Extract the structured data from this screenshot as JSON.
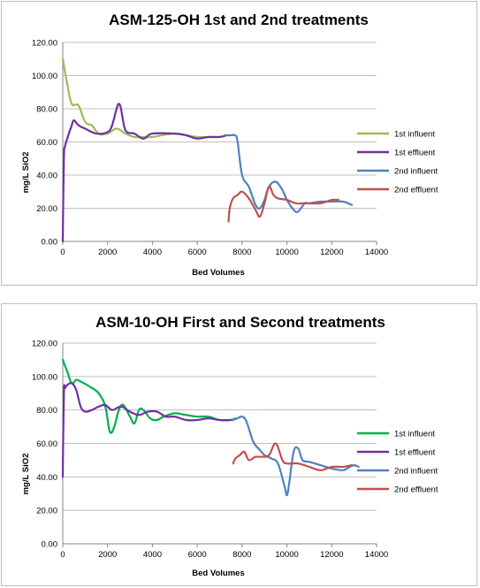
{
  "chart_data": [
    {
      "type": "line",
      "title": "ASM-125-OH  1st and 2nd treatments",
      "xlabel": "Bed Volumes",
      "ylabel": "mg/L SiO2",
      "xlim": [
        0,
        14000
      ],
      "ylim": [
        0,
        120
      ],
      "x_ticks": [
        "0",
        "2000",
        "4000",
        "6000",
        "8000",
        "10000",
        "12000",
        "14000"
      ],
      "y_ticks": [
        "0.00",
        "20.00",
        "40.00",
        "60.00",
        "80.00",
        "100.00",
        "120.00"
      ],
      "grid": "horizontal",
      "legend_position": "right",
      "series": [
        {
          "name": "1st influent",
          "color": "#9bbb59",
          "points": [
            [
              0,
              110
            ],
            [
              200,
              95
            ],
            [
              400,
              83
            ],
            [
              700,
              82
            ],
            [
              1000,
              72
            ],
            [
              1300,
              70
            ],
            [
              1600,
              65
            ],
            [
              2000,
              65
            ],
            [
              2400,
              68
            ],
            [
              2800,
              65
            ],
            [
              3200,
              63
            ],
            [
              3600,
              63
            ],
            [
              4000,
              63
            ],
            [
              5000,
              65
            ],
            [
              6000,
              63
            ],
            [
              7000,
              63
            ],
            [
              7300,
              64
            ],
            [
              7600,
              64
            ]
          ]
        },
        {
          "name": "1st effluent",
          "color": "#7030a0",
          "points": [
            [
              0,
              0
            ],
            [
              50,
              50
            ],
            [
              100,
              57
            ],
            [
              200,
              62
            ],
            [
              400,
              70
            ],
            [
              500,
              73
            ],
            [
              700,
              70
            ],
            [
              1000,
              68
            ],
            [
              1500,
              65
            ],
            [
              2000,
              66
            ],
            [
              2200,
              70
            ],
            [
              2400,
              80
            ],
            [
              2500,
              83
            ],
            [
              2600,
              80
            ],
            [
              2800,
              67
            ],
            [
              3200,
              65
            ],
            [
              3600,
              62
            ],
            [
              4000,
              65
            ],
            [
              5000,
              65
            ],
            [
              5500,
              64
            ],
            [
              6000,
              62
            ],
            [
              6500,
              63
            ],
            [
              7000,
              63
            ],
            [
              7300,
              64
            ]
          ]
        },
        {
          "name": "2nd influent",
          "color": "#4f81bd",
          "points": [
            [
              7300,
              64
            ],
            [
              7500,
              64
            ],
            [
              7700,
              64
            ],
            [
              7800,
              60
            ],
            [
              8000,
              40
            ],
            [
              8300,
              33
            ],
            [
              8600,
              22
            ],
            [
              8800,
              20
            ],
            [
              9000,
              25
            ],
            [
              9200,
              33
            ],
            [
              9500,
              36
            ],
            [
              9800,
              31
            ],
            [
              10000,
              25
            ],
            [
              10300,
              19
            ],
            [
              10500,
              18
            ],
            [
              10800,
              23
            ],
            [
              11000,
              23
            ],
            [
              11500,
              24
            ],
            [
              12000,
              24
            ],
            [
              12500,
              24
            ],
            [
              12900,
              22
            ]
          ]
        },
        {
          "name": "2nd effluent",
          "color": "#c0504d",
          "points": [
            [
              7400,
              12
            ],
            [
              7450,
              20
            ],
            [
              7600,
              26
            ],
            [
              7800,
              28
            ],
            [
              8000,
              30
            ],
            [
              8300,
              26
            ],
            [
              8600,
              19
            ],
            [
              8800,
              15
            ],
            [
              9000,
              23
            ],
            [
              9200,
              33
            ],
            [
              9400,
              28
            ],
            [
              9600,
              26
            ],
            [
              10000,
              25
            ],
            [
              10400,
              23
            ],
            [
              10800,
              23
            ],
            [
              11500,
              23
            ],
            [
              12000,
              25
            ],
            [
              12300,
              25
            ]
          ]
        }
      ]
    },
    {
      "type": "line",
      "title": "ASM-10-OH First and Second treatments",
      "xlabel": "Bed Volumes",
      "ylabel": "mg/L SiO2",
      "xlim": [
        0,
        14000
      ],
      "ylim": [
        0,
        120
      ],
      "x_ticks": [
        "0",
        "2000",
        "4000",
        "6000",
        "8000",
        "10000",
        "12000",
        "14000"
      ],
      "y_ticks": [
        "0.00",
        "20.00",
        "40.00",
        "60.00",
        "80.00",
        "100.00",
        "120.00"
      ],
      "grid": "horizontal",
      "legend_position": "right",
      "series": [
        {
          "name": "1st influent",
          "color": "#00b050",
          "points": [
            [
              0,
              110
            ],
            [
              200,
              103
            ],
            [
              400,
              96
            ],
            [
              600,
              98
            ],
            [
              800,
              97
            ],
            [
              1200,
              94
            ],
            [
              1600,
              90
            ],
            [
              1900,
              82
            ],
            [
              2100,
              67
            ],
            [
              2300,
              70
            ],
            [
              2500,
              80
            ],
            [
              2700,
              83
            ],
            [
              3000,
              76
            ],
            [
              3200,
              72
            ],
            [
              3400,
              80
            ],
            [
              3600,
              80
            ],
            [
              3900,
              75
            ],
            [
              4200,
              74
            ],
            [
              4500,
              76
            ],
            [
              5000,
              78
            ],
            [
              5500,
              77
            ],
            [
              6000,
              76
            ],
            [
              6500,
              76
            ],
            [
              7000,
              74
            ],
            [
              7500,
              74
            ],
            [
              7700,
              75
            ]
          ]
        },
        {
          "name": "1st effluent",
          "color": "#7030a0",
          "points": [
            [
              0,
              40
            ],
            [
              50,
              90
            ],
            [
              100,
              93
            ],
            [
              200,
              95
            ],
            [
              400,
              96
            ],
            [
              600,
              92
            ],
            [
              800,
              82
            ],
            [
              1000,
              79
            ],
            [
              1300,
              80
            ],
            [
              1600,
              82
            ],
            [
              1900,
              83
            ],
            [
              2200,
              80
            ],
            [
              2600,
              82
            ],
            [
              3000,
              79
            ],
            [
              3400,
              77
            ],
            [
              3800,
              79
            ],
            [
              4200,
              79
            ],
            [
              4600,
              76
            ],
            [
              5000,
              76
            ],
            [
              5500,
              74
            ],
            [
              6000,
              74
            ],
            [
              6500,
              75
            ],
            [
              7000,
              74
            ],
            [
              7500,
              74
            ]
          ]
        },
        {
          "name": "2nd influent",
          "color": "#4f81bd",
          "points": [
            [
              7600,
              74
            ],
            [
              7800,
              75
            ],
            [
              8000,
              76
            ],
            [
              8200,
              73
            ],
            [
              8500,
              61
            ],
            [
              8800,
              56
            ],
            [
              9000,
              53
            ],
            [
              9300,
              51
            ],
            [
              9600,
              48
            ],
            [
              9900,
              34
            ],
            [
              10000,
              29
            ],
            [
              10100,
              36
            ],
            [
              10300,
              55
            ],
            [
              10500,
              57
            ],
            [
              10700,
              50
            ],
            [
              11000,
              49
            ],
            [
              11500,
              47
            ],
            [
              12000,
              45
            ],
            [
              12500,
              44
            ],
            [
              12800,
              46
            ],
            [
              13000,
              47
            ],
            [
              13200,
              46
            ]
          ]
        },
        {
          "name": "2nd effluent",
          "color": "#c0504d",
          "points": [
            [
              7600,
              48
            ],
            [
              7700,
              51
            ],
            [
              7900,
              53
            ],
            [
              8100,
              55
            ],
            [
              8300,
              50
            ],
            [
              8600,
              52
            ],
            [
              8900,
              52
            ],
            [
              9200,
              53
            ],
            [
              9500,
              60
            ],
            [
              9800,
              50
            ],
            [
              10000,
              48
            ],
            [
              10500,
              48
            ],
            [
              11000,
              46
            ],
            [
              11500,
              44
            ],
            [
              12000,
              46
            ],
            [
              12500,
              46
            ],
            [
              12900,
              47
            ]
          ]
        }
      ]
    }
  ]
}
